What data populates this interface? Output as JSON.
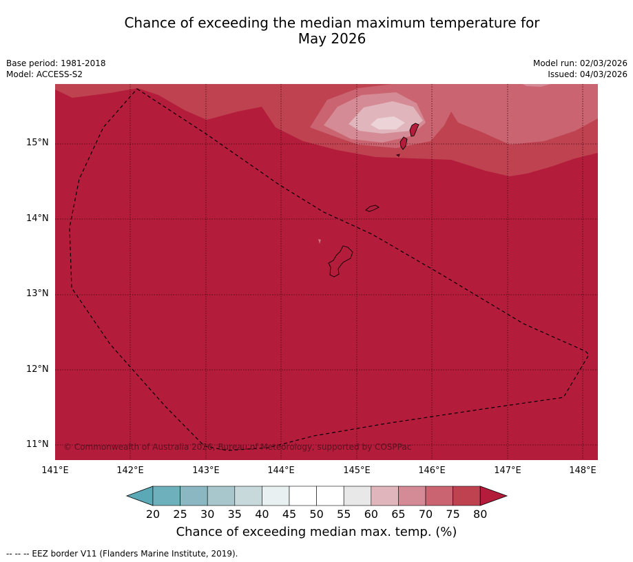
{
  "title_line1": "Chance of exceeding the median maximum temperature for",
  "title_line2": "May 2026",
  "base_period": "Base period: 1981-2018",
  "model": "Model: ACCESS-S2",
  "model_run": "Model run: 02/03/2026",
  "issued": "Issued: 04/03/2026",
  "copyright": "© Commonwealth of Australia 2026, Bureau of Meteorology, supported by COSPPac",
  "lat_labels": [
    "15°N",
    "14°N",
    "13°N",
    "12°N",
    "11°N"
  ],
  "lon_labels": [
    "141°E",
    "142°E",
    "143°E",
    "144°E",
    "145°E",
    "146°E",
    "147°E",
    "148°E"
  ],
  "colorbar": {
    "ticks": [
      "20",
      "25",
      "30",
      "35",
      "40",
      "45",
      "50",
      "55",
      "60",
      "65",
      "70",
      "75",
      "80"
    ],
    "colors": [
      "#5ba9b6",
      "#6fb0bd",
      "#8ab7c2",
      "#a7c7cc",
      "#c8d9dc",
      "#e8f0f1",
      "#ffffff",
      "#ffffff",
      "#e8e8e8",
      "#e0b5bb",
      "#d48b95",
      "#c96470",
      "#bf4250",
      "#b31c3a"
    ],
    "title": "Chance of exceeding median max. temp. (%)"
  },
  "footer": "--  --  -- EEZ border V11 (Flanders Marine Institute, 2019)."
}
